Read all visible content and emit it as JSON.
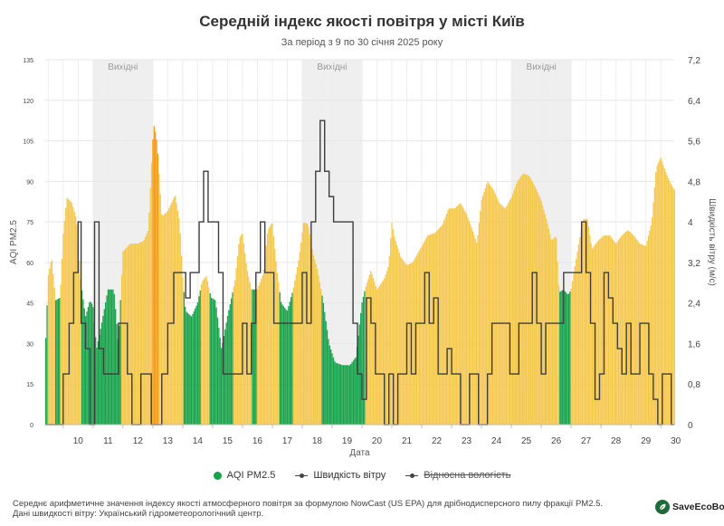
{
  "chart_data": {
    "type": "bar",
    "title": "Середній індекс якості повітря у місті Київ",
    "subtitle": "За період з 9 по 30 січня 2025 року",
    "xlabel": "Дата",
    "ylabel_left": "AQI PM2.5",
    "ylabel_right": "Швидкість вітру (м/с)",
    "ylim_left": [
      0,
      135
    ],
    "yticks_left": [
      0,
      15,
      30,
      45,
      60,
      75,
      90,
      105,
      120,
      135
    ],
    "ylim_right": [
      0,
      7.2
    ],
    "yticks_right": [
      "0",
      "0,8",
      "1,6",
      "2,4",
      "3,2",
      "4",
      "4,8",
      "5,6",
      "6,4",
      "7,2"
    ],
    "xlim": [
      9.4,
      30.45
    ],
    "xticks": [
      10,
      11,
      12,
      13,
      14,
      15,
      16,
      17,
      18,
      19,
      20,
      21,
      22,
      23,
      24,
      25,
      26,
      27,
      28,
      29,
      30
    ],
    "weekend_bands": [
      {
        "from": 11,
        "to": 13,
        "label": "Вихідні"
      },
      {
        "from": 18,
        "to": 20,
        "label": "Вихідні"
      },
      {
        "from": 25,
        "to": 27,
        "label": "Вихідні"
      }
    ],
    "aqi_colors": {
      "good": "#16a34a",
      "moderate": "#f5c84c",
      "sensitive": "#f59a0e"
    },
    "aqi_thresholds": [
      50,
      100
    ],
    "aqi_series": {
      "name": "AQI PM2.5",
      "points": [
        [
          9.4,
          26
        ],
        [
          9.5,
          55
        ],
        [
          9.62,
          62
        ],
        [
          9.75,
          46
        ],
        [
          9.9,
          47
        ],
        [
          10.0,
          70
        ],
        [
          10.12,
          84
        ],
        [
          10.3,
          82
        ],
        [
          10.45,
          76
        ],
        [
          10.6,
          52
        ],
        [
          10.75,
          40
        ],
        [
          10.9,
          46
        ],
        [
          11.0,
          44
        ],
        [
          11.12,
          28
        ],
        [
          11.3,
          38
        ],
        [
          11.5,
          50
        ],
        [
          11.7,
          50
        ],
        [
          11.85,
          30
        ],
        [
          12.0,
          64
        ],
        [
          12.25,
          67
        ],
        [
          12.5,
          67
        ],
        [
          12.7,
          68
        ],
        [
          12.85,
          72
        ],
        [
          13.0,
          105
        ],
        [
          13.05,
          111
        ],
        [
          13.15,
          104
        ],
        [
          13.3,
          77
        ],
        [
          13.5,
          79
        ],
        [
          13.75,
          85
        ],
        [
          13.9,
          75
        ],
        [
          14.0,
          55
        ],
        [
          14.1,
          42
        ],
        [
          14.3,
          40
        ],
        [
          14.5,
          45
        ],
        [
          14.65,
          53
        ],
        [
          14.8,
          55
        ],
        [
          14.95,
          47
        ],
        [
          15.1,
          46
        ],
        [
          15.3,
          28
        ],
        [
          15.5,
          40
        ],
        [
          15.75,
          53
        ],
        [
          15.9,
          69
        ],
        [
          16.0,
          71
        ],
        [
          16.15,
          58
        ],
        [
          16.3,
          50
        ],
        [
          16.5,
          50
        ],
        [
          16.7,
          56
        ],
        [
          16.85,
          72
        ],
        [
          17.0,
          75
        ],
        [
          17.15,
          58
        ],
        [
          17.3,
          45
        ],
        [
          17.5,
          42
        ],
        [
          17.7,
          50
        ],
        [
          17.9,
          62
        ],
        [
          18.05,
          75
        ],
        [
          18.2,
          74
        ],
        [
          18.35,
          64
        ],
        [
          18.5,
          58
        ],
        [
          18.7,
          46
        ],
        [
          18.9,
          30
        ],
        [
          19.1,
          23
        ],
        [
          19.35,
          22
        ],
        [
          19.6,
          22
        ],
        [
          19.8,
          25
        ],
        [
          20.0,
          45
        ],
        [
          20.1,
          50
        ],
        [
          20.3,
          57
        ],
        [
          20.5,
          50
        ],
        [
          20.75,
          54
        ],
        [
          20.9,
          59
        ],
        [
          21.0,
          75
        ],
        [
          21.1,
          69
        ],
        [
          21.3,
          62
        ],
        [
          21.5,
          59
        ],
        [
          21.7,
          60
        ],
        [
          21.9,
          64
        ],
        [
          22.0,
          66
        ],
        [
          22.2,
          70
        ],
        [
          22.45,
          71
        ],
        [
          22.7,
          74
        ],
        [
          22.9,
          80
        ],
        [
          23.1,
          80
        ],
        [
          23.3,
          82
        ],
        [
          23.5,
          78
        ],
        [
          23.7,
          72
        ],
        [
          23.85,
          67
        ],
        [
          24.0,
          83
        ],
        [
          24.2,
          90
        ],
        [
          24.4,
          87
        ],
        [
          24.6,
          82
        ],
        [
          24.8,
          80
        ],
        [
          25.0,
          84
        ],
        [
          25.2,
          90
        ],
        [
          25.4,
          93
        ],
        [
          25.6,
          92
        ],
        [
          25.8,
          88
        ],
        [
          26.0,
          83
        ],
        [
          26.2,
          75
        ],
        [
          26.35,
          68
        ],
        [
          26.5,
          70
        ],
        [
          26.6,
          49
        ],
        [
          26.75,
          50
        ],
        [
          26.9,
          48
        ],
        [
          27.0,
          50
        ],
        [
          27.15,
          60
        ],
        [
          27.4,
          76
        ],
        [
          27.55,
          76
        ],
        [
          27.7,
          65
        ],
        [
          27.9,
          68
        ],
        [
          28.1,
          70
        ],
        [
          28.3,
          70
        ],
        [
          28.5,
          67
        ],
        [
          28.7,
          70
        ],
        [
          28.9,
          72
        ],
        [
          29.1,
          70
        ],
        [
          29.3,
          67
        ],
        [
          29.5,
          66
        ],
        [
          29.7,
          75
        ],
        [
          29.85,
          95
        ],
        [
          30.0,
          99
        ],
        [
          30.15,
          94
        ],
        [
          30.3,
          90
        ],
        [
          30.45,
          87
        ]
      ]
    },
    "wind_series": {
      "name": "Швидкість вітру",
      "points": [
        [
          9.4,
          0
        ],
        [
          9.55,
          0
        ],
        [
          9.7,
          0
        ],
        [
          9.85,
          0
        ],
        [
          10.0,
          1.0
        ],
        [
          10.2,
          2.0
        ],
        [
          10.35,
          3.0
        ],
        [
          10.5,
          4.0
        ],
        [
          10.6,
          2.0
        ],
        [
          10.75,
          1.5
        ],
        [
          10.9,
          0
        ],
        [
          11.05,
          4.0
        ],
        [
          11.2,
          1.5
        ],
        [
          11.35,
          1.0
        ],
        [
          11.5,
          1.0
        ],
        [
          11.7,
          1.0
        ],
        [
          11.85,
          2.0
        ],
        [
          12.0,
          2.0
        ],
        [
          12.15,
          1.0
        ],
        [
          12.3,
          0
        ],
        [
          12.45,
          0
        ],
        [
          12.6,
          1.0
        ],
        [
          12.8,
          1.0
        ],
        [
          12.95,
          0
        ],
        [
          13.1,
          0
        ],
        [
          13.3,
          1.0
        ],
        [
          13.5,
          2.0
        ],
        [
          13.7,
          3.0
        ],
        [
          13.9,
          3.0
        ],
        [
          14.1,
          2.5
        ],
        [
          14.25,
          3.0
        ],
        [
          14.4,
          3.0
        ],
        [
          14.55,
          4.0
        ],
        [
          14.7,
          5.0
        ],
        [
          14.85,
          4.0
        ],
        [
          15.0,
          4.0
        ],
        [
          15.2,
          3.0
        ],
        [
          15.35,
          1.0
        ],
        [
          15.5,
          1.0
        ],
        [
          15.7,
          1.0
        ],
        [
          15.85,
          1.0
        ],
        [
          16.0,
          2.0
        ],
        [
          16.15,
          1.0
        ],
        [
          16.3,
          2.0
        ],
        [
          16.45,
          3.0
        ],
        [
          16.6,
          4.0
        ],
        [
          16.75,
          3.0
        ],
        [
          16.9,
          3.0
        ],
        [
          17.05,
          2.0
        ],
        [
          17.2,
          2.0
        ],
        [
          17.4,
          2.0
        ],
        [
          17.6,
          2.0
        ],
        [
          17.8,
          2.0
        ],
        [
          18.0,
          3.0
        ],
        [
          18.15,
          2.0
        ],
        [
          18.3,
          4.0
        ],
        [
          18.45,
          5.0
        ],
        [
          18.6,
          6.0
        ],
        [
          18.75,
          5.0
        ],
        [
          18.9,
          4.5
        ],
        [
          19.05,
          4.0
        ],
        [
          19.2,
          4.0
        ],
        [
          19.4,
          4.0
        ],
        [
          19.55,
          4.0
        ],
        [
          19.7,
          2.0
        ],
        [
          19.85,
          1.0
        ],
        [
          20.0,
          0.5
        ],
        [
          20.15,
          2.5
        ],
        [
          20.3,
          2.0
        ],
        [
          20.45,
          1.0
        ],
        [
          20.6,
          1.0
        ],
        [
          20.75,
          0
        ],
        [
          20.9,
          1.0
        ],
        [
          21.05,
          0
        ],
        [
          21.2,
          1.0
        ],
        [
          21.35,
          1.0
        ],
        [
          21.5,
          2.0
        ],
        [
          21.65,
          1.0
        ],
        [
          21.8,
          2.0
        ],
        [
          21.95,
          2.0
        ],
        [
          22.1,
          3.0
        ],
        [
          22.25,
          2.0
        ],
        [
          22.4,
          2.5
        ],
        [
          22.55,
          1.0
        ],
        [
          22.7,
          1.0
        ],
        [
          22.85,
          1.5
        ],
        [
          23.0,
          1.0
        ],
        [
          23.15,
          1.0
        ],
        [
          23.3,
          0
        ],
        [
          23.45,
          0
        ],
        [
          23.6,
          1.0
        ],
        [
          23.75,
          1.0
        ],
        [
          23.9,
          0
        ],
        [
          24.05,
          0
        ],
        [
          24.2,
          1.0
        ],
        [
          24.35,
          2.0
        ],
        [
          24.5,
          2.0
        ],
        [
          24.65,
          2.0
        ],
        [
          24.8,
          2.0
        ],
        [
          24.95,
          1.0
        ],
        [
          25.1,
          1.0
        ],
        [
          25.25,
          2.0
        ],
        [
          25.4,
          2.0
        ],
        [
          25.55,
          2.0
        ],
        [
          25.7,
          3.0
        ],
        [
          25.85,
          2.0
        ],
        [
          26.0,
          1.0
        ],
        [
          26.15,
          2.0
        ],
        [
          26.3,
          2.0
        ],
        [
          26.45,
          2.0
        ],
        [
          26.6,
          2.0
        ],
        [
          26.75,
          3.0
        ],
        [
          26.9,
          3.0
        ],
        [
          27.05,
          3.0
        ],
        [
          27.2,
          3.0
        ],
        [
          27.35,
          4.0
        ],
        [
          27.5,
          3.0
        ],
        [
          27.65,
          2.0
        ],
        [
          27.8,
          0.5
        ],
        [
          27.95,
          1.0
        ],
        [
          28.1,
          3.0
        ],
        [
          28.25,
          2.5
        ],
        [
          28.4,
          2.0
        ],
        [
          28.55,
          1.5
        ],
        [
          28.7,
          1.0
        ],
        [
          28.85,
          2.0
        ],
        [
          29.0,
          1.0
        ],
        [
          29.15,
          1.0
        ],
        [
          29.3,
          2.0
        ],
        [
          29.45,
          2.0
        ],
        [
          29.6,
          1.0
        ],
        [
          29.75,
          0.5
        ],
        [
          29.9,
          0
        ],
        [
          30.05,
          1.0
        ],
        [
          30.2,
          1.0
        ],
        [
          30.35,
          0
        ]
      ]
    },
    "legend": {
      "aqi": "AQI PM2.5",
      "wind": "Швидкість вітру",
      "humidity": "Відносна вологість"
    }
  },
  "footnote": {
    "line1": "Середнє арифметичне значення індексу якості атмосферного повітря за формулою NowCast (US EPA) для дрібнодисперсного пилу фракції PM2.5.",
    "line2": "Дані швидкості вітру: Український гідрометеорологічний центр."
  },
  "brand": {
    "name": "SaveEcoBot",
    "color": "#1e6b3a"
  }
}
